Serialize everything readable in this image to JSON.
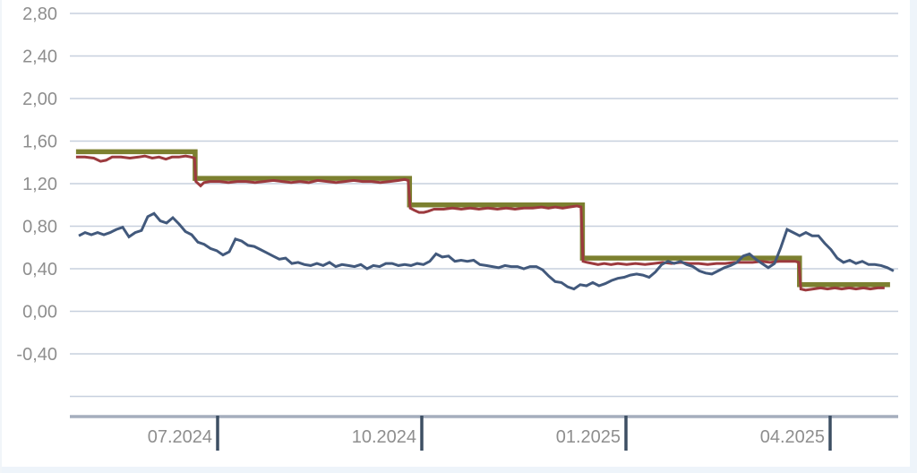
{
  "page": {
    "background": "#ffffff",
    "edge_color": "#eef4fa"
  },
  "chart_data": {
    "type": "line",
    "title": "",
    "subtitle": "",
    "legend": "none",
    "grid": "horizontal-only",
    "y_axis": {
      "label_color": "#8e8e8e",
      "gridline_color": "#c7d0de",
      "ticks": [
        {
          "label": "2,80",
          "value": 2.8
        },
        {
          "label": "2,40",
          "value": 2.4
        },
        {
          "label": "2,00",
          "value": 2.0
        },
        {
          "label": "1,60",
          "value": 1.6
        },
        {
          "label": "1,20",
          "value": 1.2
        },
        {
          "label": "0,80",
          "value": 0.8
        },
        {
          "label": "0,40",
          "value": 0.4
        },
        {
          "label": "0,00",
          "value": 0.0
        },
        {
          "label": "-0,40",
          "value": -0.4
        }
      ],
      "unlabeled_gridline_values": [
        -0.8
      ],
      "range": [
        -1.0,
        2.8
      ]
    },
    "x_axis": {
      "axis_color": "#a5aebd",
      "tick_color": "#3d4f63",
      "label_color": "#8e8e8e",
      "unit": "months_from_2024-07-01",
      "range_t": [
        -2.17,
        10.0
      ],
      "ticks": [
        {
          "label": "07.2024",
          "t": 0
        },
        {
          "label": "10.2024",
          "t": 3
        },
        {
          "label": "01.2025",
          "t": 6
        },
        {
          "label": "04.2025",
          "t": 9
        }
      ]
    },
    "series": [
      {
        "name": "olive-step-series",
        "color": "#7c8030",
        "stroke_width": 5.5,
        "shape": "step",
        "points": [
          [
            -2.08,
            1.5
          ],
          [
            -0.33,
            1.5
          ],
          [
            -0.33,
            1.25
          ],
          [
            2.82,
            1.25
          ],
          [
            2.82,
            1.0
          ],
          [
            5.36,
            1.0
          ],
          [
            5.36,
            0.5
          ],
          [
            8.55,
            0.5
          ],
          [
            8.55,
            0.25
          ],
          [
            9.88,
            0.25
          ]
        ]
      },
      {
        "name": "dark-red-series",
        "color": "#9c3a3e",
        "stroke_width": 3,
        "shape": "line",
        "points": [
          [
            -2.08,
            1.45
          ],
          [
            -1.95,
            1.45
          ],
          [
            -1.82,
            1.44
          ],
          [
            -1.72,
            1.41
          ],
          [
            -1.64,
            1.42
          ],
          [
            -1.55,
            1.45
          ],
          [
            -1.42,
            1.45
          ],
          [
            -1.29,
            1.44
          ],
          [
            -1.16,
            1.45
          ],
          [
            -1.07,
            1.46
          ],
          [
            -0.96,
            1.44
          ],
          [
            -0.86,
            1.45
          ],
          [
            -0.76,
            1.43
          ],
          [
            -0.67,
            1.45
          ],
          [
            -0.57,
            1.45
          ],
          [
            -0.47,
            1.46
          ],
          [
            -0.39,
            1.45
          ],
          [
            -0.34,
            1.44
          ],
          [
            -0.32,
            1.22
          ],
          [
            -0.25,
            1.18
          ],
          [
            -0.2,
            1.21
          ],
          [
            -0.11,
            1.22
          ],
          [
            0.03,
            1.22
          ],
          [
            0.16,
            1.21
          ],
          [
            0.29,
            1.22
          ],
          [
            0.42,
            1.22
          ],
          [
            0.55,
            1.21
          ],
          [
            0.68,
            1.22
          ],
          [
            0.82,
            1.23
          ],
          [
            0.95,
            1.22
          ],
          [
            1.08,
            1.21
          ],
          [
            1.21,
            1.22
          ],
          [
            1.34,
            1.21
          ],
          [
            1.47,
            1.23
          ],
          [
            1.61,
            1.22
          ],
          [
            1.74,
            1.21
          ],
          [
            1.87,
            1.22
          ],
          [
            2.0,
            1.23
          ],
          [
            2.13,
            1.22
          ],
          [
            2.26,
            1.22
          ],
          [
            2.39,
            1.21
          ],
          [
            2.53,
            1.22
          ],
          [
            2.66,
            1.23
          ],
          [
            2.75,
            1.24
          ],
          [
            2.8,
            1.23
          ],
          [
            2.83,
            0.97
          ],
          [
            2.89,
            0.95
          ],
          [
            2.96,
            0.93
          ],
          [
            3.03,
            0.93
          ],
          [
            3.09,
            0.94
          ],
          [
            3.18,
            0.96
          ],
          [
            3.32,
            0.96
          ],
          [
            3.45,
            0.97
          ],
          [
            3.58,
            0.96
          ],
          [
            3.71,
            0.97
          ],
          [
            3.84,
            0.96
          ],
          [
            3.97,
            0.97
          ],
          [
            4.11,
            0.96
          ],
          [
            4.24,
            0.97
          ],
          [
            4.37,
            0.96
          ],
          [
            4.5,
            0.97
          ],
          [
            4.63,
            0.97
          ],
          [
            4.76,
            0.98
          ],
          [
            4.86,
            0.97
          ],
          [
            4.96,
            0.98
          ],
          [
            5.07,
            0.97
          ],
          [
            5.17,
            0.98
          ],
          [
            5.28,
            0.99
          ],
          [
            5.34,
            0.98
          ],
          [
            5.37,
            0.47
          ],
          [
            5.43,
            0.46
          ],
          [
            5.51,
            0.45
          ],
          [
            5.59,
            0.44
          ],
          [
            5.68,
            0.45
          ],
          [
            5.78,
            0.44
          ],
          [
            5.88,
            0.45
          ],
          [
            6.01,
            0.44
          ],
          [
            6.14,
            0.45
          ],
          [
            6.28,
            0.44
          ],
          [
            6.41,
            0.45
          ],
          [
            6.54,
            0.46
          ],
          [
            6.67,
            0.45
          ],
          [
            6.8,
            0.46
          ],
          [
            6.93,
            0.45
          ],
          [
            7.07,
            0.45
          ],
          [
            7.2,
            0.44
          ],
          [
            7.33,
            0.45
          ],
          [
            7.46,
            0.45
          ],
          [
            7.59,
            0.46
          ],
          [
            7.72,
            0.46
          ],
          [
            7.86,
            0.46
          ],
          [
            7.99,
            0.47
          ],
          [
            8.12,
            0.46
          ],
          [
            8.25,
            0.47
          ],
          [
            8.38,
            0.47
          ],
          [
            8.49,
            0.47
          ],
          [
            8.54,
            0.46
          ],
          [
            8.57,
            0.21
          ],
          [
            8.64,
            0.2
          ],
          [
            8.75,
            0.21
          ],
          [
            8.86,
            0.22
          ],
          [
            8.96,
            0.21
          ],
          [
            9.07,
            0.22
          ],
          [
            9.17,
            0.21
          ],
          [
            9.28,
            0.22
          ],
          [
            9.38,
            0.21
          ],
          [
            9.49,
            0.22
          ],
          [
            9.59,
            0.21
          ],
          [
            9.7,
            0.22
          ],
          [
            9.8,
            0.22
          ]
        ]
      },
      {
        "name": "slate-blue-series",
        "color": "#42597c",
        "stroke_width": 3,
        "shape": "line",
        "t_start": -2.04,
        "t_step": 0.0921,
        "values": [
          0.71,
          0.74,
          0.72,
          0.74,
          0.72,
          0.74,
          0.77,
          0.79,
          0.7,
          0.74,
          0.76,
          0.89,
          0.92,
          0.85,
          0.83,
          0.88,
          0.82,
          0.75,
          0.72,
          0.65,
          0.63,
          0.59,
          0.57,
          0.53,
          0.56,
          0.68,
          0.66,
          0.62,
          0.61,
          0.58,
          0.55,
          0.52,
          0.49,
          0.5,
          0.45,
          0.46,
          0.44,
          0.43,
          0.45,
          0.43,
          0.46,
          0.42,
          0.44,
          0.43,
          0.42,
          0.44,
          0.4,
          0.43,
          0.42,
          0.45,
          0.45,
          0.43,
          0.44,
          0.43,
          0.45,
          0.44,
          0.47,
          0.54,
          0.51,
          0.52,
          0.47,
          0.48,
          0.47,
          0.48,
          0.44,
          0.43,
          0.42,
          0.41,
          0.43,
          0.42,
          0.42,
          0.4,
          0.42,
          0.42,
          0.39,
          0.33,
          0.28,
          0.27,
          0.23,
          0.21,
          0.25,
          0.24,
          0.27,
          0.24,
          0.26,
          0.29,
          0.31,
          0.32,
          0.34,
          0.35,
          0.34,
          0.32,
          0.37,
          0.44,
          0.47,
          0.45,
          0.47,
          0.44,
          0.42,
          0.38,
          0.36,
          0.35,
          0.38,
          0.41,
          0.43,
          0.46,
          0.52,
          0.54,
          0.49,
          0.45,
          0.41,
          0.45,
          0.6,
          0.77,
          0.74,
          0.71,
          0.74,
          0.71,
          0.71,
          0.64,
          0.58,
          0.5,
          0.46,
          0.48,
          0.45,
          0.47,
          0.44,
          0.44,
          0.43,
          0.41,
          0.38
        ]
      }
    ]
  }
}
